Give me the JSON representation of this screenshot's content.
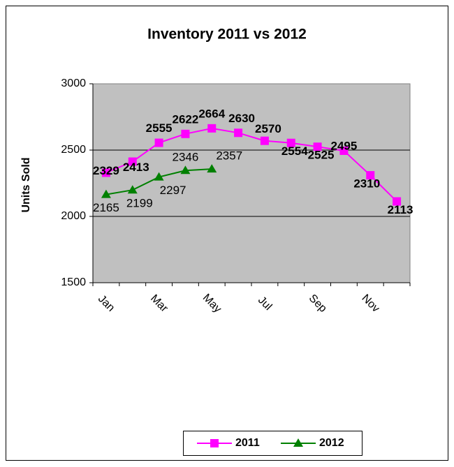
{
  "chart_data": {
    "type": "line",
    "title": "Inventory 2011 vs 2012",
    "y_label": "Units Sold",
    "categories": [
      "Jan",
      null,
      "Mar",
      null,
      "May",
      null,
      "Jul",
      null,
      "Sep",
      null,
      "Nov",
      null
    ],
    "series": [
      {
        "name": "2011",
        "color": "#ff00ff",
        "marker": "square",
        "values": [
          2329,
          2413,
          2555,
          2622,
          2664,
          2630,
          2570,
          2554,
          2525,
          2495,
          2310,
          2113
        ]
      },
      {
        "name": "2012",
        "color": "#008000",
        "marker": "triangle",
        "values": [
          2165,
          2199,
          2297,
          2346,
          2357,
          null,
          null,
          null,
          null,
          null,
          null,
          null
        ]
      }
    ],
    "ylim": [
      1500,
      3000
    ],
    "yticks": [
      1500,
      2000,
      2500,
      3000
    ],
    "grid": true,
    "legend": "bottom"
  }
}
